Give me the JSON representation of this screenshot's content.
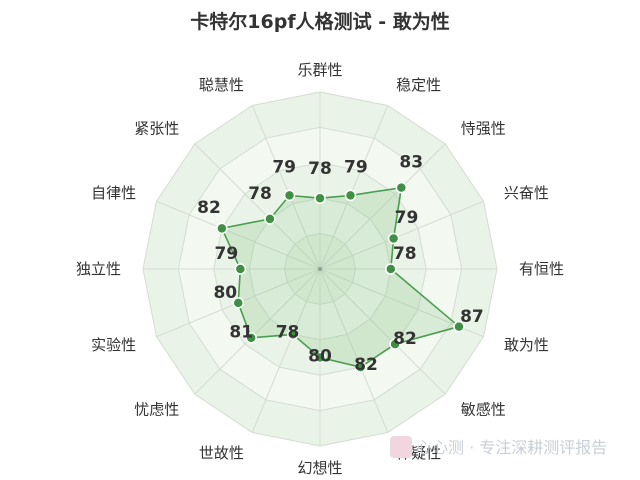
{
  "chart_data": {
    "type": "radar",
    "title": "卡特尔16pf人格测试 - 敢为性",
    "axes": [
      "乐群性",
      "稳定性",
      "恃强性",
      "兴奋性",
      "有恒性",
      "敢为性",
      "敏感性",
      "怀疑性",
      "幻想性",
      "世故性",
      "忧虑性",
      "实验性",
      "独立性",
      "自律性",
      "紧张性",
      "聪慧性"
    ],
    "values": [
      78,
      79,
      83,
      79,
      78,
      87,
      82,
      82,
      80,
      78,
      81,
      80,
      79,
      82,
      78,
      79
    ],
    "range": [
      70,
      90
    ],
    "grid": true,
    "colors": {
      "line": "#4a9e50",
      "fill": "rgba(120,190,120,0.22)",
      "point": "#3f8f45",
      "background": "#eaf3e7",
      "grid": "#d5dcd3"
    }
  },
  "watermark": {
    "text": "心心测 · 专注深耕测评报告"
  }
}
